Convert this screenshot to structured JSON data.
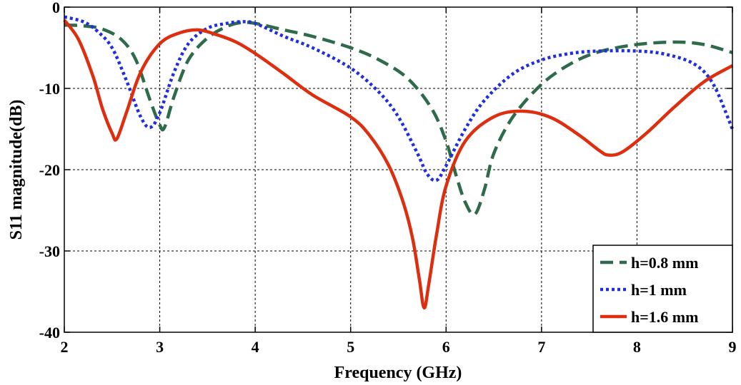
{
  "chart_data": {
    "type": "line",
    "xlabel": "Frequency (GHz)",
    "ylabel": "S11 magnitude(dB)",
    "xlim": [
      2,
      9
    ],
    "ylim": [
      -40,
      0
    ],
    "xticks": [
      2,
      3,
      4,
      5,
      6,
      7,
      8,
      9
    ],
    "yticks": [
      0,
      -10,
      -20,
      -30,
      -40
    ],
    "grid": true,
    "legend_position": "bottom-right",
    "series": [
      {
        "name": "h=0.8 mm",
        "color": "#2e6b4b",
        "style": "dashed",
        "x": [
          2.0,
          2.2,
          2.4,
          2.6,
          2.75,
          2.9,
          3.0,
          3.05,
          3.15,
          3.3,
          3.5,
          3.7,
          3.85,
          4.0,
          4.3,
          4.6,
          5.0,
          5.3,
          5.6,
          5.85,
          6.0,
          6.1,
          6.2,
          6.3,
          6.4,
          6.5,
          6.7,
          7.0,
          7.3,
          7.6,
          8.0,
          8.4,
          8.7,
          9.0
        ],
        "y": [
          -2.2,
          -2.3,
          -2.7,
          -4.0,
          -6.5,
          -11.5,
          -14.5,
          -14.8,
          -11.0,
          -6.5,
          -3.8,
          -2.4,
          -1.9,
          -2.0,
          -2.8,
          -3.6,
          -5.0,
          -6.5,
          -8.8,
          -12.5,
          -16.5,
          -20.5,
          -24.0,
          -25.5,
          -22.5,
          -18.0,
          -13.5,
          -9.5,
          -7.0,
          -5.5,
          -4.6,
          -4.3,
          -4.6,
          -5.6
        ]
      },
      {
        "name": "h=1 mm",
        "color": "#1f2fe0",
        "style": "dotted",
        "x": [
          2.0,
          2.2,
          2.35,
          2.5,
          2.65,
          2.8,
          2.9,
          3.0,
          3.15,
          3.3,
          3.5,
          3.7,
          3.85,
          4.0,
          4.3,
          4.6,
          5.0,
          5.3,
          5.5,
          5.7,
          5.8,
          5.9,
          6.0,
          6.2,
          6.4,
          6.7,
          7.0,
          7.3,
          7.6,
          8.0,
          8.3,
          8.6,
          8.8,
          9.0
        ],
        "y": [
          -1.2,
          -1.8,
          -3.0,
          -5.0,
          -9.0,
          -13.5,
          -14.8,
          -13.0,
          -8.0,
          -4.5,
          -2.6,
          -2.0,
          -1.8,
          -2.0,
          -3.6,
          -5.0,
          -7.5,
          -10.5,
          -13.5,
          -18.0,
          -20.5,
          -21.3,
          -19.5,
          -15.0,
          -11.5,
          -8.2,
          -6.5,
          -5.7,
          -5.4,
          -5.4,
          -5.8,
          -7.0,
          -9.5,
          -15.0
        ]
      },
      {
        "name": "h=1.6 mm",
        "color": "#dd2e0f",
        "style": "solid",
        "x": [
          2.0,
          2.15,
          2.3,
          2.4,
          2.5,
          2.55,
          2.65,
          2.8,
          3.0,
          3.2,
          3.4,
          3.6,
          3.8,
          4.0,
          4.3,
          4.6,
          5.0,
          5.2,
          5.4,
          5.55,
          5.65,
          5.72,
          5.77,
          5.82,
          5.9,
          6.0,
          6.2,
          6.5,
          6.8,
          7.1,
          7.4,
          7.6,
          7.7,
          7.85,
          8.1,
          8.4,
          8.7,
          9.0
        ],
        "y": [
          -1.6,
          -4.0,
          -8.5,
          -12.5,
          -15.5,
          -16.2,
          -13.0,
          -8.0,
          -4.5,
          -3.2,
          -2.8,
          -3.4,
          -4.3,
          -5.7,
          -8.2,
          -10.8,
          -13.5,
          -15.8,
          -19.5,
          -24.0,
          -28.5,
          -33.5,
          -37.0,
          -34.0,
          -28.0,
          -22.0,
          -16.5,
          -13.5,
          -12.8,
          -13.6,
          -15.8,
          -17.6,
          -18.2,
          -17.8,
          -15.5,
          -12.2,
          -9.2,
          -7.2
        ]
      }
    ]
  }
}
